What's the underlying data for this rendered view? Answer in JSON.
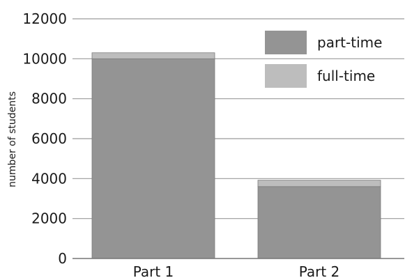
{
  "chart_data": {
    "type": "bar",
    "stacked": true,
    "categories": [
      "Part 1",
      "Part 2"
    ],
    "series": [
      {
        "name": "part-time",
        "values": [
          10000,
          3600
        ],
        "color": "#949494"
      },
      {
        "name": "full-time",
        "values": [
          300,
          320
        ],
        "color": "#bdbdbd"
      }
    ],
    "ylabel": "number of students",
    "ylim": [
      0,
      12000
    ],
    "yticks": [
      "0",
      "2000",
      "4000",
      "6000",
      "8000",
      "10000",
      "12000"
    ],
    "grid": true,
    "legend_position": "top-right"
  }
}
